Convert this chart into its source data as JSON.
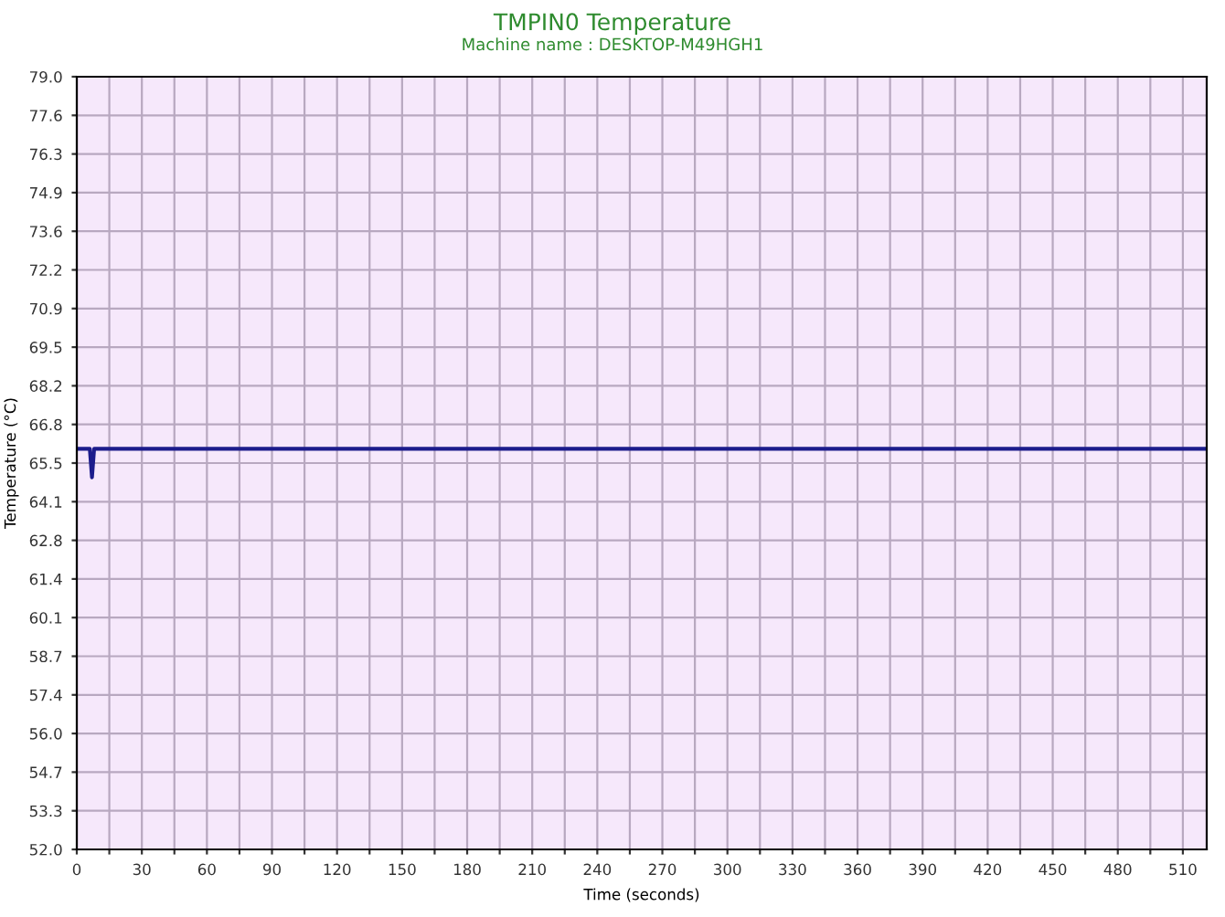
{
  "chart_data": {
    "type": "line",
    "title": "TMPIN0 Temperature",
    "subtitle": "Machine name : DESKTOP-M49HGH1",
    "xlabel": "Time (seconds)",
    "ylabel": "Temperature (°C)",
    "series": [
      {
        "color": "#1c1c8c",
        "x": [
          0,
          6,
          7,
          8,
          521
        ],
        "values": [
          66.0,
          66.0,
          65.0,
          66.0,
          66.0
        ]
      }
    ],
    "xlim": [
      0,
      521
    ],
    "xticks": [
      0,
      {
        "value": 15,
        "label": null
      },
      30,
      {
        "value": 45,
        "label": null
      },
      60,
      {
        "value": 75,
        "label": null
      },
      90,
      {
        "value": 105,
        "label": null
      },
      120,
      {
        "value": 135,
        "label": null
      },
      150,
      {
        "value": 165,
        "label": null
      },
      180,
      {
        "value": 195,
        "label": null
      },
      210,
      {
        "value": 225,
        "label": null
      },
      240,
      {
        "value": 255,
        "label": null
      },
      270,
      {
        "value": 285,
        "label": null
      },
      300,
      {
        "value": 315,
        "label": null
      },
      330,
      {
        "value": 345,
        "label": null
      },
      360,
      {
        "value": 375,
        "label": null
      },
      390,
      {
        "value": 405,
        "label": null
      },
      420,
      {
        "value": 435,
        "label": null
      },
      450,
      {
        "value": 465,
        "label": null
      },
      480,
      {
        "value": 495,
        "label": null
      },
      510
    ],
    "ylim": [
      52,
      79
    ],
    "yticks": [
      {
        "value": 52,
        "label": "52.0"
      },
      {
        "value": 53.35,
        "label": "53.3"
      },
      {
        "value": 54.7,
        "label": "54.7"
      },
      {
        "value": 56.05,
        "label": "56.0"
      },
      {
        "value": 57.4,
        "label": "57.4"
      },
      {
        "value": 58.75,
        "label": "58.7"
      },
      {
        "value": 60.1,
        "label": "60.1"
      },
      {
        "value": 61.45,
        "label": "61.4"
      },
      {
        "value": 62.8,
        "label": "62.8"
      },
      {
        "value": 64.15,
        "label": "64.1"
      },
      {
        "value": 65.5,
        "label": "65.5"
      },
      {
        "value": 66.85,
        "label": "66.8"
      },
      {
        "value": 68.2,
        "label": "68.2"
      },
      {
        "value": 69.55,
        "label": "69.5"
      },
      {
        "value": 70.9,
        "label": "70.9"
      },
      {
        "value": 72.25,
        "label": "72.2"
      },
      {
        "value": 73.6,
        "label": "73.6"
      },
      {
        "value": 74.95,
        "label": "74.9"
      },
      {
        "value": 76.3,
        "label": "76.3"
      },
      {
        "value": 77.65,
        "label": "77.6"
      },
      {
        "value": 79,
        "label": "79.0"
      }
    ],
    "grid": true,
    "marker": "none",
    "line_style": "solid"
  }
}
